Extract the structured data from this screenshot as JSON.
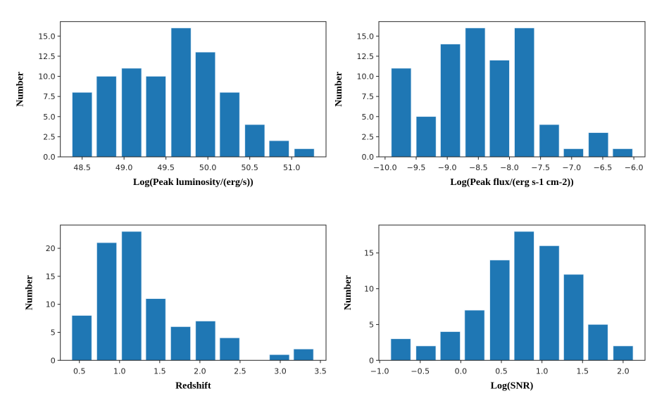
{
  "chart_data": [
    {
      "type": "bar",
      "xlabel": "Log(Peak luminosity/(erg/s))",
      "ylabel": "Number",
      "x": [
        48.5,
        48.79,
        49.09,
        49.38,
        49.68,
        49.97,
        50.26,
        50.56,
        50.85,
        51.15
      ],
      "values": [
        8,
        10,
        11,
        10,
        16,
        13,
        8,
        4,
        2,
        1
      ],
      "xlim": [
        48.24,
        51.41
      ],
      "ylim": [
        0,
        16.8
      ],
      "xticks": [
        48.5,
        49.0,
        49.5,
        50.0,
        50.5,
        51.0
      ],
      "xtick_labels": [
        "48.5",
        "49.0",
        "49.5",
        "50.0",
        "50.5",
        "51.0"
      ],
      "yticks": [
        0,
        2.5,
        5,
        7.5,
        10,
        12.5,
        15
      ],
      "ytick_labels": [
        "0.0",
        "2.5",
        "5.0",
        "7.5",
        "10.0",
        "12.5",
        "15.0"
      ],
      "color": "#1f77b4",
      "grid": false
    },
    {
      "type": "bar",
      "xlabel": "Log(Peak flux/(erg s-1 cm-2))",
      "ylabel": "Number",
      "x": [
        -9.74,
        -9.34,
        -8.95,
        -8.55,
        -8.16,
        -7.76,
        -7.36,
        -6.97,
        -6.57,
        -6.18
      ],
      "values": [
        11,
        5,
        14,
        16,
        12,
        16,
        4,
        1,
        3,
        1
      ],
      "xlim": [
        -10.1,
        -5.82
      ],
      "ylim": [
        0,
        16.8
      ],
      "xticks": [
        -10.0,
        -9.5,
        -9.0,
        -8.5,
        -8.0,
        -7.5,
        -7.0,
        -6.5,
        -6.0
      ],
      "xtick_labels": [
        "−10.0",
        "−9.5",
        "−9.0",
        "−8.5",
        "−8.0",
        "−7.5",
        "−7.0",
        "−6.5",
        "−6.0"
      ],
      "yticks": [
        0,
        2.5,
        5,
        7.5,
        10,
        12.5,
        15
      ],
      "ytick_labels": [
        "0.0",
        "2.5",
        "5.0",
        "7.5",
        "10.0",
        "12.5",
        "15.0"
      ],
      "color": "#1f77b4",
      "grid": false
    },
    {
      "type": "bar",
      "xlabel": "Redshift",
      "ylabel": "Number",
      "x": [
        0.53,
        0.84,
        1.15,
        1.45,
        1.76,
        2.07,
        2.37,
        2.68,
        2.99,
        3.29
      ],
      "values": [
        8,
        21,
        23,
        11,
        6,
        7,
        4,
        0,
        1,
        2
      ],
      "xlim": [
        0.263,
        3.57
      ],
      "ylim": [
        0,
        24.15
      ],
      "xticks": [
        0.5,
        1.0,
        1.5,
        2.0,
        2.5,
        3.0,
        3.5
      ],
      "xtick_labels": [
        "0.5",
        "1.0",
        "1.5",
        "2.0",
        "2.5",
        "3.0",
        "3.5"
      ],
      "yticks": [
        0,
        5,
        10,
        15,
        20
      ],
      "ytick_labels": [
        "0",
        "5",
        "10",
        "15",
        "20"
      ],
      "color": "#1f77b4",
      "grid": false
    },
    {
      "type": "bar",
      "xlabel": "Log(SNR)",
      "ylabel": "Number",
      "x": [
        -0.74,
        -0.43,
        -0.13,
        0.17,
        0.48,
        0.78,
        1.09,
        1.39,
        1.69,
        2.0
      ],
      "values": [
        3,
        2,
        4,
        7,
        14,
        18,
        16,
        12,
        5,
        2
      ],
      "xlim": [
        -1.01,
        2.27
      ],
      "ylim": [
        0,
        18.9
      ],
      "xticks": [
        -1.0,
        -0.5,
        0.0,
        0.5,
        1.0,
        1.5,
        2.0
      ],
      "xtick_labels": [
        "−1.0",
        "−0.5",
        "0.0",
        "0.5",
        "1.0",
        "1.5",
        "2.0"
      ],
      "yticks": [
        0,
        5,
        10,
        15
      ],
      "ytick_labels": [
        "0",
        "5",
        "10",
        "15"
      ],
      "color": "#1f77b4",
      "grid": false
    }
  ]
}
